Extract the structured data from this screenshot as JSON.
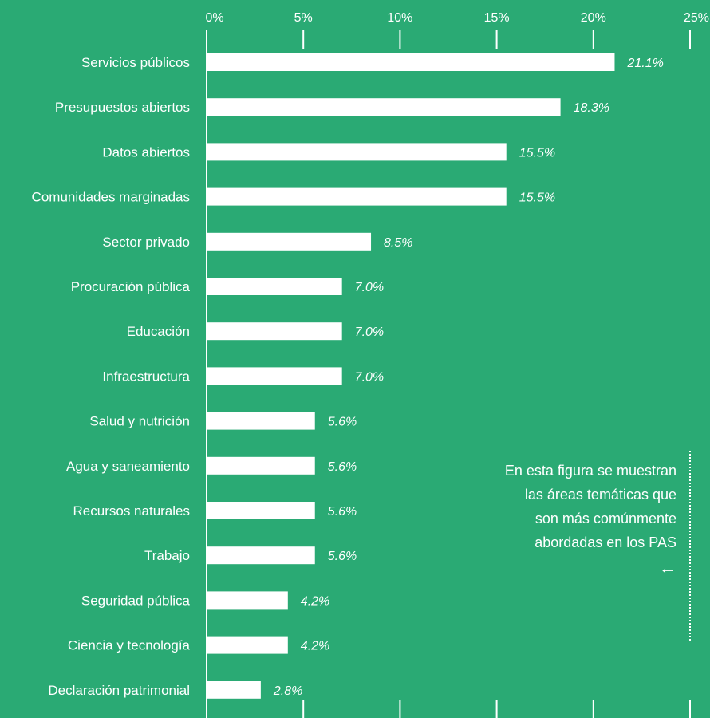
{
  "chart_data": {
    "type": "bar",
    "orientation": "horizontal",
    "categories": [
      "Servicios públicos",
      "Presupuestos abiertos",
      "Datos abiertos",
      "Comunidades marginadas",
      "Sector privado",
      "Procuración pública",
      "Educación",
      "Infraestructura",
      "Salud y nutrición",
      "Agua y saneamiento",
      "Recursos naturales",
      "Trabajo",
      "Seguridad pública",
      "Ciencia y tecnología",
      "Declaración patrimonial"
    ],
    "values": [
      21.1,
      18.3,
      15.5,
      15.5,
      8.5,
      7.0,
      7.0,
      7.0,
      5.6,
      5.6,
      5.6,
      5.6,
      4.2,
      4.2,
      2.8
    ],
    "value_labels": [
      "21.1%",
      "18.3%",
      "15.5%",
      "15.5%",
      "8.5%",
      "7.0%",
      "7.0%",
      "7.0%",
      "5.6%",
      "5.6%",
      "5.6%",
      "5.6%",
      "4.2%",
      "4.2%",
      "2.8%"
    ],
    "xticks": [
      0,
      5,
      10,
      15,
      20,
      25
    ],
    "xtick_labels": [
      "0%",
      "5%",
      "10%",
      "15%",
      "20%",
      "25%"
    ],
    "xlim": [
      0,
      25
    ],
    "axis_position": "top",
    "grid": false,
    "bar_color": "#ffffff",
    "background_color": "#2aaa74"
  },
  "annotation": {
    "lines": [
      "En esta figura se muestran",
      "las áreas temáticas que",
      "son más comúnmente",
      "abordadas en los PAS"
    ],
    "arrow": "←"
  }
}
